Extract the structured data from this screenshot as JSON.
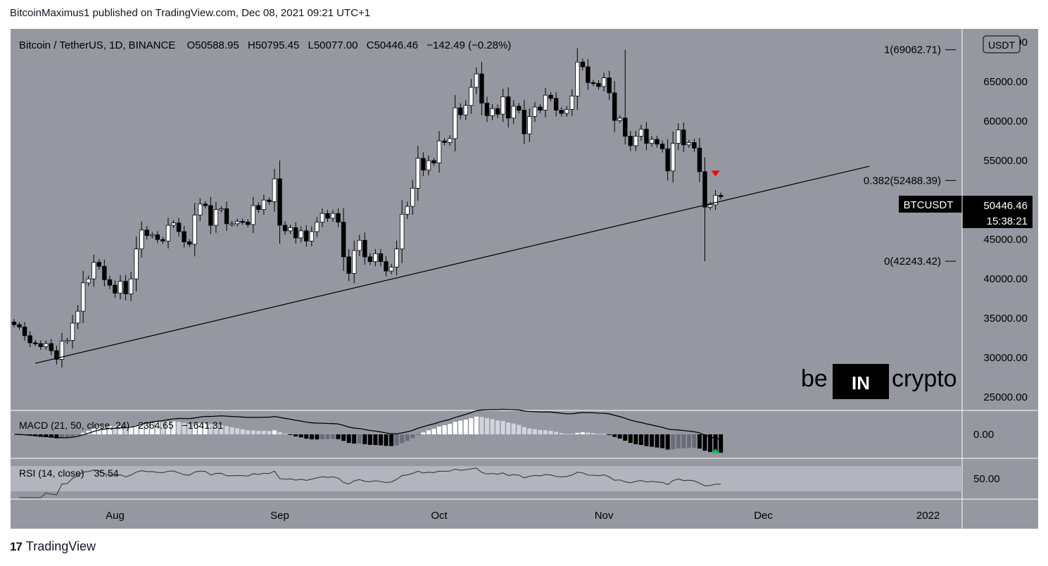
{
  "header": {
    "publisher": "BitcoinMaximus1 published on TradingView.com, Dec 08, 2021 09:21 UTC+1"
  },
  "legend": {
    "symbol": "Bitcoin / TetherUS, 1D, BINANCE",
    "o_label": "O",
    "o": "50588.95",
    "h_label": "H",
    "h": "50795.45",
    "l_label": "L",
    "l": "50077.00",
    "c_label": "C",
    "c": "50446.46",
    "change": "−142.49 (−0.28%)"
  },
  "currency_badge": "USDT",
  "price_tag": {
    "symbol": "BTCUSDT",
    "price": "50446.46",
    "countdown": "15:38:21"
  },
  "fib_levels": [
    {
      "label": "1(69062.71)",
      "value": 69062.71
    },
    {
      "label": "0.382(52488.39)",
      "value": 52488.39
    },
    {
      "label": "0(42243.42)",
      "value": 42243.42
    }
  ],
  "macd": {
    "label": "MACD (21, 50, close, 24)",
    "v1": "2364.65",
    "v2": "−1641.31",
    "axis_label": "0.00"
  },
  "rsi": {
    "label": "RSI (14, close)",
    "value": "35.54",
    "axis_label": "50.00"
  },
  "watermark": {
    "left": "be",
    "mid": "IN",
    "right": "crypto"
  },
  "footer": {
    "logo": "17",
    "name": "TradingView"
  },
  "colors": {
    "background": "#9598a1",
    "up": "#ffffff",
    "down": "#000000",
    "marker_down": "#ff0000",
    "marker_up": "#00c853"
  },
  "chart_data": {
    "type": "candlestick",
    "title": "Bitcoin / TetherUS, 1D, BINANCE",
    "ylim": [
      23500,
      71000
    ],
    "y_ticks": [
      "25000.00",
      "30000.00",
      "35000.00",
      "40000.00",
      "45000.00",
      "50000.00",
      "55000.00",
      "60000.00",
      "65000.00",
      "70000.00"
    ],
    "y_tick_values": [
      25000,
      30000,
      35000,
      40000,
      45000,
      50000,
      55000,
      60000,
      65000,
      70000
    ],
    "x_ticks": [
      "Aug",
      "Sep",
      "Oct",
      "Nov",
      "Dec",
      "2022"
    ],
    "x_tick_days": [
      19,
      50,
      80,
      111,
      141,
      172
    ],
    "start_date": "2021-07-13",
    "closes": [
      34200,
      33900,
      32800,
      31900,
      31800,
      31400,
      31800,
      30900,
      29800,
      32100,
      32200,
      34400,
      35900,
      39500,
      40000,
      42100,
      41600,
      39900,
      39200,
      38200,
      39700,
      38100,
      40000,
      43800,
      46200,
      45500,
      45600,
      45000,
      44800,
      46800,
      47100,
      46000,
      44700,
      44400,
      48100,
      49500,
      49300,
      46800,
      48800,
      48900,
      47000,
      47000,
      47300,
      47200,
      46900,
      49300,
      48800,
      50000,
      49800,
      52700,
      46800,
      46100,
      46500,
      45200,
      46100,
      44800,
      46000,
      47200,
      48300,
      47700,
      48300,
      47200,
      42800,
      40700,
      43600,
      44900,
      42800,
      42200,
      43200,
      42200,
      41000,
      41500,
      43800,
      48200,
      49200,
      51500,
      55300,
      53800,
      55000,
      54700,
      57500,
      57300,
      57800,
      61700,
      60800,
      62000,
      64300,
      66000,
      62300,
      60700,
      61600,
      60900,
      63100,
      60400,
      61900,
      61400,
      58400,
      60600,
      61800,
      61400,
      63300,
      62900,
      61400,
      61000,
      61500,
      63200,
      67500,
      66900,
      64900,
      64800,
      64400,
      65500,
      63600,
      60100,
      60400,
      58100,
      56900,
      58100,
      59000,
      57200,
      57700,
      57100,
      56500,
      53700,
      57200,
      58900,
      57000,
      57300,
      56600,
      53600,
      49100,
      49400,
      50600,
      50446
    ],
    "trendline": [
      [
        4,
        29300
      ],
      [
        161,
        54300
      ]
    ]
  }
}
